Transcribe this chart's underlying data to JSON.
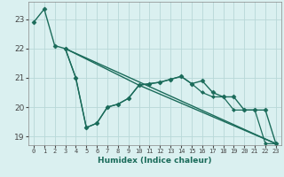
{
  "title": "",
  "xlabel": "Humidex (Indice chaleur)",
  "ylabel": "",
  "background_color": "#daf0f0",
  "grid_color": "#b8d8d8",
  "line_color": "#1a6b5a",
  "xlim": [
    -0.5,
    23.5
  ],
  "ylim": [
    18.7,
    23.6
  ],
  "yticks": [
    19,
    20,
    21,
    22,
    23
  ],
  "xticks": [
    0,
    1,
    2,
    3,
    4,
    5,
    6,
    7,
    8,
    9,
    10,
    11,
    12,
    13,
    14,
    15,
    16,
    17,
    18,
    19,
    20,
    21,
    22,
    23
  ],
  "series": [
    {
      "x": [
        0,
        1,
        2,
        3,
        4,
        5,
        6,
        7,
        8,
        9,
        10,
        11,
        12,
        13,
        14,
        15,
        16,
        17,
        18,
        19,
        20,
        21,
        22,
        23
      ],
      "y": [
        22.9,
        23.35,
        22.1,
        22.0,
        21.0,
        19.3,
        19.45,
        20.0,
        20.1,
        20.3,
        20.75,
        20.8,
        20.85,
        20.95,
        21.05,
        20.8,
        20.9,
        20.5,
        20.35,
        20.35,
        19.9,
        19.9,
        19.9,
        18.75
      ],
      "marker": "D",
      "markersize": 2.5,
      "linewidth": 1.0,
      "linestyle": "-"
    },
    {
      "x": [
        3,
        4,
        5,
        6,
        7,
        8,
        9,
        10,
        11,
        12,
        13,
        14,
        15,
        16,
        17,
        18,
        19,
        20,
        21,
        22,
        23
      ],
      "y": [
        22.0,
        21.0,
        19.3,
        19.45,
        20.0,
        20.1,
        20.3,
        20.75,
        20.8,
        20.85,
        20.95,
        21.05,
        20.8,
        20.5,
        20.35,
        20.35,
        19.9,
        19.9,
        19.9,
        18.75,
        18.75
      ],
      "marker": "D",
      "markersize": 2.0,
      "linewidth": 0.9,
      "linestyle": "-"
    },
    {
      "x": [
        3,
        23
      ],
      "y": [
        22.0,
        18.75
      ],
      "marker": null,
      "markersize": 0,
      "linewidth": 1.0,
      "linestyle": "-"
    },
    {
      "x": [
        3,
        10,
        23
      ],
      "y": [
        22.0,
        20.75,
        18.75
      ],
      "marker": null,
      "markersize": 0,
      "linewidth": 1.0,
      "linestyle": "-"
    }
  ]
}
